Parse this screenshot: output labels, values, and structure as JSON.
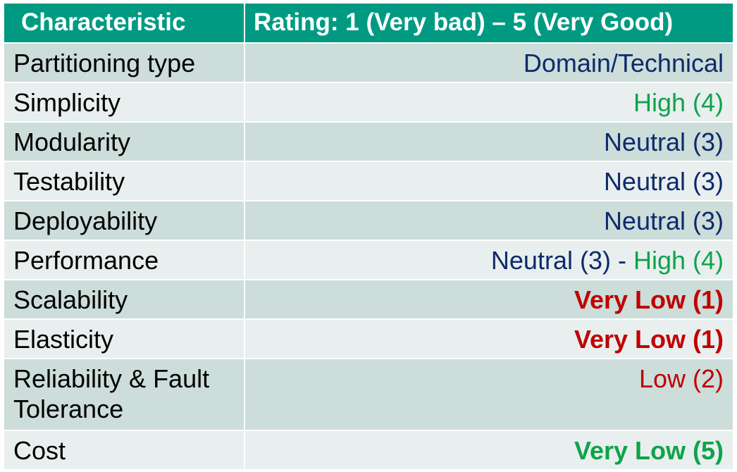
{
  "colors": {
    "header_bg": "#009A82",
    "row_odd_bg": "#CCDDDA",
    "row_even_bg": "#E8EFEE",
    "navy": "#0D2A6B",
    "green": "#0FA34A",
    "red": "#C00000"
  },
  "table": {
    "header": {
      "characteristic": "Characteristic",
      "rating": "Rating: 1 (Very bad) – 5 (Very Good)"
    },
    "rows": [
      {
        "characteristic": "Partitioning type",
        "rating": [
          {
            "text": "Domain/Technical",
            "color": "#0D2A6B",
            "bold": false
          }
        ]
      },
      {
        "characteristic": "Simplicity",
        "rating": [
          {
            "text": "High (4)",
            "color": "#0FA34A",
            "bold": false
          }
        ]
      },
      {
        "characteristic": "Modularity",
        "rating": [
          {
            "text": "Neutral (3)",
            "color": "#0D2A6B",
            "bold": false
          }
        ]
      },
      {
        "characteristic": "Testability",
        "rating": [
          {
            "text": "Neutral (3)",
            "color": "#0D2A6B",
            "bold": false
          }
        ]
      },
      {
        "characteristic": "Deployability",
        "rating": [
          {
            "text": "Neutral (3)",
            "color": "#0D2A6B",
            "bold": false
          }
        ]
      },
      {
        "characteristic": "Performance",
        "rating": [
          {
            "text": "Neutral (3) - ",
            "color": "#0D2A6B",
            "bold": false
          },
          {
            "text": "High (4)",
            "color": "#0FA34A",
            "bold": false
          }
        ]
      },
      {
        "characteristic": "Scalability",
        "rating": [
          {
            "text": "Very Low (1)",
            "color": "#C00000",
            "bold": true
          }
        ]
      },
      {
        "characteristic": "Elasticity",
        "rating": [
          {
            "text": "Very Low (1)",
            "color": "#C00000",
            "bold": true
          }
        ]
      },
      {
        "characteristic": "Reliability & Fault Tolerance",
        "rating": [
          {
            "text": "Low (2)",
            "color": "#C00000",
            "bold": false
          }
        ]
      },
      {
        "characteristic": "Cost",
        "rating": [
          {
            "text": "Very Low (5)",
            "color": "#0FA34A",
            "bold": true
          }
        ]
      }
    ]
  }
}
